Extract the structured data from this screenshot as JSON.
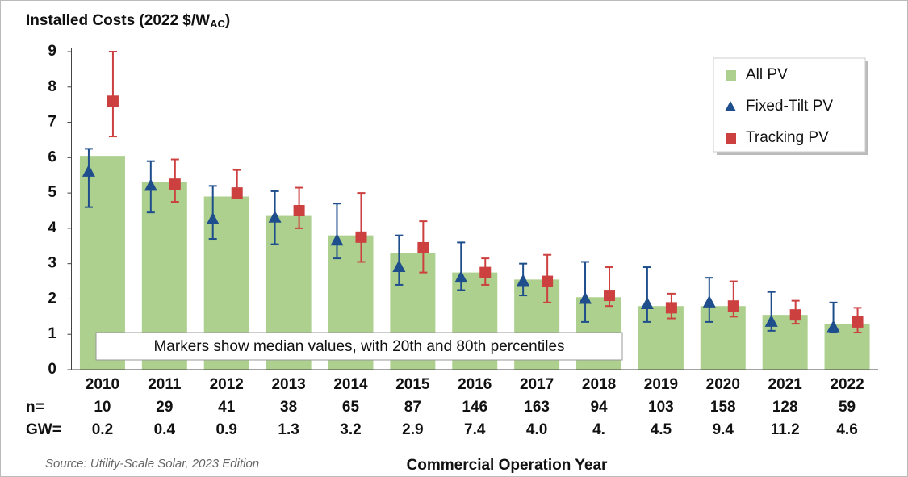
{
  "chart_data": {
    "type": "bar",
    "title": "Installed Costs (2022 $/W",
    "title_subscript": "AC",
    "title_end": ")",
    "categories": [
      "2010",
      "2011",
      "2012",
      "2013",
      "2014",
      "2015",
      "2016",
      "2017",
      "2018",
      "2019",
      "2020",
      "2021",
      "2022"
    ],
    "n_label": "n=",
    "n": [
      10,
      29,
      41,
      38,
      65,
      87,
      146,
      163,
      94,
      103,
      158,
      128,
      59
    ],
    "gw_label": "GW=",
    "gw": [
      "0.2",
      "0.4",
      "0.9",
      "1.3",
      "3.2",
      "2.9",
      "7.4",
      "4.0",
      "4.",
      "4.5",
      "9.4",
      "11.2",
      "4.6"
    ],
    "x_label": "Commercial Operation Year",
    "source": "Source: Utility-Scale Solar, 2023 Edition",
    "annotation": "Markers show median values, with 20th and 80th percentiles",
    "ylim": [
      0,
      9
    ],
    "yticks": [
      0,
      1,
      2,
      3,
      4,
      5,
      6,
      7,
      8,
      9
    ],
    "series": [
      {
        "name": "All PV",
        "color": "#add08e",
        "marker": "bar",
        "values": [
          6.05,
          5.3,
          4.9,
          4.35,
          3.8,
          3.3,
          2.75,
          2.55,
          2.05,
          1.8,
          1.8,
          1.55,
          1.3
        ]
      },
      {
        "name": "Fixed-Tilt PV",
        "color": "#1f4e8c",
        "marker": "triangle",
        "values": [
          5.6,
          5.2,
          4.25,
          4.3,
          3.65,
          2.9,
          2.6,
          2.5,
          2.0,
          1.85,
          1.9,
          1.35,
          1.2
        ],
        "low": [
          4.6,
          4.45,
          3.7,
          3.55,
          3.15,
          2.4,
          2.25,
          2.1,
          1.35,
          1.35,
          1.35,
          1.1,
          1.05
        ],
        "high": [
          6.25,
          5.9,
          5.2,
          5.05,
          4.7,
          3.8,
          3.6,
          3.0,
          3.05,
          2.9,
          2.6,
          2.2,
          1.9
        ]
      },
      {
        "name": "Tracking PV",
        "color": "#cc4040",
        "marker": "square",
        "values": [
          7.6,
          5.25,
          5.0,
          4.5,
          3.75,
          3.45,
          2.75,
          2.5,
          2.1,
          1.75,
          1.8,
          1.55,
          1.35
        ],
        "low": [
          6.6,
          4.75,
          4.9,
          4.0,
          3.05,
          2.75,
          2.4,
          1.9,
          1.8,
          1.45,
          1.5,
          1.3,
          1.05
        ],
        "high": [
          9.0,
          5.95,
          5.65,
          5.15,
          5.0,
          4.2,
          3.15,
          3.25,
          2.9,
          2.15,
          2.5,
          1.95,
          1.75
        ]
      }
    ]
  }
}
